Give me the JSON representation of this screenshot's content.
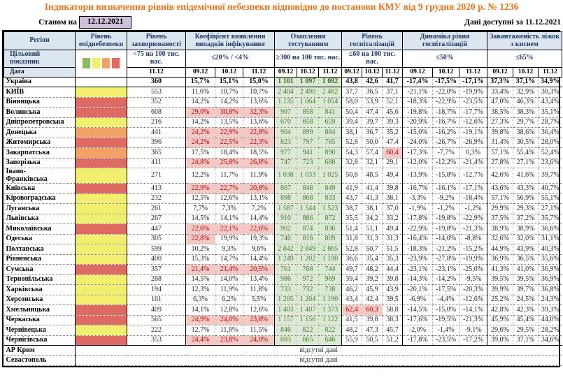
{
  "title": "Індикатори визначення рівнів епідемічної небезпеки відповідно до постанови КМУ від 9 грудня 2020 р. № 1236",
  "meta": {
    "as_of_label": "Станом на",
    "as_of_date": "12.12.2021",
    "available_label": "Дані доступні за 11.12.2021"
  },
  "colors": {
    "title_text": "#E8751A",
    "header_bg": "#DCE6F1",
    "date_box_bg": "#CCC0DA",
    "level_yellow": "#F2EE6E",
    "level_orange": "#F2A269",
    "level_red": "#DF6A64",
    "legend_green": "#8CBB5A",
    "testing_bg": "#DCEAD3",
    "testing_text": "#4A7A38",
    "danger_bg": "#F5C9C6",
    "danger_text": "#C00000"
  },
  "table": {
    "header": {
      "region_label": "Регіон",
      "level_label": "Рівень епіднебезпеки",
      "target_label": "Цільовий\nпоказник",
      "date_label": "Дата",
      "groups": [
        {
          "label": "Рівень захворюваності",
          "target": "<75 на 100 тис. нас.",
          "dates": [
            "11.12"
          ]
        },
        {
          "label": "Коефіцієнт виявлення випадків інфікування",
          "target": "≤20% / <4%",
          "dates": [
            "09.12",
            "10.12",
            "11.12"
          ]
        },
        {
          "label": "Охоплення тестуванням",
          "target": "≥300 на 100 тис. нас.",
          "dates": [
            "09.12",
            "10.12",
            "11.12"
          ]
        },
        {
          "label": "Рівень госпіталізацій",
          "target": "≤60 на 100 тис. нас.",
          "dates": [
            "09.12",
            "10.12",
            "11.12"
          ]
        },
        {
          "label": "Динаміка рівня госпіталізацій",
          "target": "≤50%",
          "dates": [
            "09.12",
            "10.12",
            "11.12"
          ]
        },
        {
          "label": "Завантаженість ліжок з киснем",
          "target": "≤65%",
          "dates": [
            "09.12",
            "10.12",
            "11.12"
          ]
        }
      ]
    },
    "legend_colors": [
      "#8CBB5A",
      "#F2EE6E",
      "#F2A269",
      "#DF6A64"
    ],
    "thresholds": {
      "coef_max": 20,
      "hosp_max": 60
    },
    "no_data_text": "відсутні дані",
    "rows": [
      {
        "region": "Україна",
        "level": "none",
        "bold": true,
        "incidence": "360",
        "coef": [
          "15,7%",
          "15,1%",
          "15,0%"
        ],
        "testing": [
          "1 101",
          "1 097",
          "1 082"
        ],
        "hosp": [
          "43,8",
          "42,6",
          "41,7"
        ],
        "dyn": [
          "-17,4%",
          "-17,5%",
          "-17,1%"
        ],
        "beds": [
          "37,3%",
          "37,1%",
          "34,9%"
        ]
      },
      {
        "region": "КИЇВ",
        "level": "yellow",
        "incidence": "553",
        "coef": [
          "11,6%",
          "10,7%",
          "10,7%"
        ],
        "testing": [
          "2 404",
          "2 490",
          "2 462"
        ],
        "hosp": [
          "37,7",
          "36,5",
          "37,1"
        ],
        "dyn": [
          "-21,1%",
          "-22,0%",
          "-19,9%"
        ],
        "beds": [
          "33,4%",
          "32,9%",
          "30,3%"
        ]
      },
      {
        "region": "Вінницька",
        "level": "red",
        "incidence": "352",
        "coef": [
          "14,2%",
          "14,2%",
          "13,6%"
        ],
        "testing": [
          "1 135",
          "1 064",
          "1 054"
        ],
        "hosp": [
          "58,0",
          "53,9",
          "52,1"
        ],
        "dyn": [
          "-18,3%",
          "-22,9%",
          "-23,5%"
        ],
        "beds": [
          "47,0%",
          "46,3%",
          "43,4%"
        ]
      },
      {
        "region": "Волинська",
        "level": "red",
        "incidence": "608",
        "coef": [
          "29,0%",
          "30,8%",
          "32,3%"
        ],
        "testing": [
          "907",
          "858",
          "841"
        ],
        "hosp": [
          "50,4",
          "47,4",
          "45,6"
        ],
        "dyn": [
          "-19,8%",
          "-18,7%",
          "-17,7%"
        ],
        "beds": [
          "38,5%",
          "38,3%",
          "35,1%"
        ]
      },
      {
        "region": "Дніпропетровська",
        "level": "yellow",
        "incidence": "216",
        "coef": [
          "14,2%",
          "13,5%",
          "13,6%"
        ],
        "testing": [
          "670",
          "658",
          "659"
        ],
        "hosp": [
          "39,4",
          "39,7",
          "39,3"
        ],
        "dyn": [
          "-20,9%",
          "-16,7%",
          "-12,6%"
        ],
        "beds": [
          "27,3%",
          "29,7%",
          "28,7%"
        ]
      },
      {
        "region": "Донецька",
        "level": "orange",
        "incidence": "441",
        "coef": [
          "24,2%",
          "22,9%",
          "22,8%"
        ],
        "testing": [
          "904",
          "899",
          "884"
        ],
        "hosp": [
          "38,1",
          "36,7",
          "35,2"
        ],
        "dyn": [
          "-15,0%",
          "-16,2%",
          "-19,1%"
        ],
        "beds": [
          "39,8%",
          "38,6%",
          "36,4%"
        ]
      },
      {
        "region": "Житомирська",
        "level": "red",
        "incidence": "396",
        "coef": [
          "24,2%",
          "22,5%",
          "22,3%"
        ],
        "testing": [
          "823",
          "797",
          "765"
        ],
        "hosp": [
          "52,8",
          "50,0",
          "47,4"
        ],
        "dyn": [
          "-24,0%",
          "-26,7%",
          "-26,9%"
        ],
        "beds": [
          "31,4%",
          "30,5%",
          "28,0%"
        ]
      },
      {
        "region": "Закарпатська",
        "level": "orange",
        "incidence": "365",
        "coef": [
          "17,5%",
          "18,4%",
          "18,5%"
        ],
        "testing": [
          "977",
          "941",
          "890"
        ],
        "hosp": [
          "54,3",
          "57,4",
          "60,4"
        ],
        "dyn": [
          "-17,3%",
          "-7,7%",
          "0,3%"
        ],
        "beds": [
          "57,1%",
          "55,4%",
          "52,4%"
        ]
      },
      {
        "region": "Запорізька",
        "level": "red",
        "incidence": "411",
        "coef": [
          "24,8%",
          "25,8%",
          "26,8%"
        ],
        "testing": [
          "747",
          "723",
          "688"
        ],
        "hosp": [
          "32,8",
          "32,1",
          "29,1"
        ],
        "dyn": [
          "-12,0%",
          "-12,2%",
          "-21,4%"
        ],
        "beds": [
          "27,8%",
          "27,1%",
          "23,6%"
        ]
      },
      {
        "region": "Івано-\nФранківська",
        "level": "yellow",
        "incidence": "271",
        "coef": [
          "12,2%",
          "11,7%",
          "11,9%"
        ],
        "testing": [
          "1 038",
          "1 033",
          "1 025"
        ],
        "hosp": [
          "50,8",
          "48,5",
          "49,4"
        ],
        "dyn": [
          "-13,9%",
          "-15,8%",
          "-12,7%"
        ],
        "beds": [
          "42,6%",
          "41,6%",
          "39,7%"
        ]
      },
      {
        "region": "Київська",
        "level": "red",
        "incidence": "413",
        "coef": [
          "22,9%",
          "22,7%",
          "20,8%"
        ],
        "testing": [
          "867",
          "848",
          "849"
        ],
        "hosp": [
          "41,9",
          "41,4",
          "39,8"
        ],
        "dyn": [
          "-16,7%",
          "-16,1%",
          "-17,1%"
        ],
        "beds": [
          "43,6%",
          "43,3%",
          "40,7%"
        ]
      },
      {
        "region": "Кіровоградська",
        "level": "yellow",
        "incidence": "232",
        "coef": [
          "12,5%",
          "12,6%",
          "13,1%"
        ],
        "testing": [
          "898",
          "868",
          "833"
        ],
        "hosp": [
          "43,7",
          "41,3",
          "38,1"
        ],
        "dyn": [
          "-3,3%",
          "-9,2%",
          "-18,4%"
        ],
        "beds": [
          "57,1%",
          "56,9%",
          "55,1%"
        ]
      },
      {
        "region": "Луганська",
        "level": "yellow",
        "incidence": "261",
        "coef": [
          "7,7%",
          "7,3%",
          "7,2%"
        ],
        "testing": [
          "1 587",
          "1 544",
          "1 523"
        ],
        "hosp": [
          "38,7",
          "38,1",
          "37,0"
        ],
        "dyn": [
          "-1,9%",
          "-1,2%",
          "-1,2%"
        ],
        "beds": [
          "29,9%",
          "29,3%",
          "27,1%"
        ]
      },
      {
        "region": "Львівська",
        "level": "yellow",
        "incidence": "267",
        "coef": [
          "14,5%",
          "14,1%",
          "14,4%"
        ],
        "testing": [
          "910",
          "886",
          "872"
        ],
        "hosp": [
          "35,5",
          "34,2",
          "33,2"
        ],
        "dyn": [
          "-17,8%",
          "-19,8%",
          "-22,9%"
        ],
        "beds": [
          "37,5%",
          "37,2%",
          "35,7%"
        ]
      },
      {
        "region": "Миколаївська",
        "level": "red",
        "incidence": "447",
        "coef": [
          "22,6%",
          "22,1%",
          "22,6%"
        ],
        "testing": [
          "902",
          "874",
          "836"
        ],
        "hosp": [
          "51,4",
          "51,1",
          "49,4"
        ],
        "dyn": [
          "-22,9%",
          "-19,8%",
          "-21,3%"
        ],
        "beds": [
          "38,9%",
          "38,9%",
          "36,6%"
        ]
      },
      {
        "region": "Одеська",
        "level": "yellow",
        "incidence": "305",
        "coef": [
          "22,8%",
          "19,9%",
          "19,3%"
        ],
        "testing": [
          "740",
          "816",
          "809"
        ],
        "hosp": [
          "31,8",
          "31,3",
          "31,3"
        ],
        "dyn": [
          "-16,4%",
          "-14,0%",
          "-8,8%"
        ],
        "beds": [
          "32,6%",
          "32,0%",
          "31,1%"
        ]
      },
      {
        "region": "Полтавська",
        "level": "yellow",
        "incidence": "599",
        "coef": [
          "10,2%",
          "9,3%",
          "9,6%"
        ],
        "testing": [
          "2 842",
          "2 849",
          "2 865"
        ],
        "hosp": [
          "52,8",
          "50,7",
          "51,5"
        ],
        "dyn": [
          "-18,3%",
          "-21,2%",
          "-15,2%"
        ],
        "beds": [
          "44,9%",
          "43,9%",
          "40,3%"
        ]
      },
      {
        "region": "Рівненська",
        "level": "yellow",
        "incidence": "400",
        "coef": [
          "15,3%",
          "14,7%",
          "14,4%"
        ],
        "testing": [
          "1 249",
          "1 202",
          "1 190"
        ],
        "hosp": [
          "36,6",
          "35,4",
          "35,3"
        ],
        "dyn": [
          "-23,9%",
          "-27,8%",
          "-19,9%"
        ],
        "beds": [
          "36,9%",
          "36,5%",
          "35,6%"
        ]
      },
      {
        "region": "Сумська",
        "level": "red",
        "incidence": "357",
        "coef": [
          "21,4%",
          "21,4%",
          "20,5%"
        ],
        "testing": [
          "761",
          "768",
          "744"
        ],
        "hosp": [
          "49,7",
          "48,2",
          "44,4"
        ],
        "dyn": [
          "-23,1%",
          "-23,1%",
          "-25,0%"
        ],
        "beds": [
          "41,3%",
          "41,0%",
          "36,9%"
        ]
      },
      {
        "region": "Тернопільська",
        "level": "yellow",
        "incidence": "288",
        "coef": [
          "14,5%",
          "14,0%",
          "13,4%"
        ],
        "testing": [
          "986",
          "972",
          "969"
        ],
        "hosp": [
          "39,4",
          "39,2",
          "39,8"
        ],
        "dyn": [
          "-14,3%",
          "-14,2%",
          "-9,5%"
        ],
        "beds": [
          "39,5%",
          "39,5%",
          "36,9%"
        ]
      },
      {
        "region": "Харківська",
        "level": "yellow",
        "incidence": "194",
        "coef": [
          "12,3%",
          "11,9%",
          "11,8%"
        ],
        "testing": [
          "733",
          "732",
          "738"
        ],
        "hosp": [
          "46,2",
          "45,9",
          "43,9"
        ],
        "dyn": [
          "-20,1%",
          "-17,5%",
          "-20,3%"
        ],
        "beds": [
          "39,9%",
          "39,7%",
          "36,8%"
        ]
      },
      {
        "region": "Херсонська",
        "level": "yellow",
        "incidence": "161",
        "coef": [
          "6,3%",
          "6,2%",
          "5,5%"
        ],
        "testing": [
          "1 205",
          "1 204",
          "1 190"
        ],
        "hosp": [
          "43,4",
          "42,4",
          "39,5"
        ],
        "dyn": [
          "-6,9%",
          "-4,4%",
          "-12,6%"
        ],
        "beds": [
          "25,2%",
          "24,5%",
          "24,3%"
        ]
      },
      {
        "region": "Хмельницька",
        "level": "red",
        "incidence": "409",
        "coef": [
          "14,1%",
          "12,8%",
          "12,6%"
        ],
        "testing": [
          "1 403",
          "1 407",
          "1 373"
        ],
        "hosp": [
          "62,4",
          "60,3",
          "58,8"
        ],
        "dyn": [
          "-14,5%",
          "-15,0%",
          "-14,1%"
        ],
        "beds": [
          "42,8%",
          "42,3%",
          "39,3%"
        ]
      },
      {
        "region": "Черкаська",
        "level": "red",
        "incidence": "565",
        "coef": [
          "24,9%",
          "24,0%",
          "23,8%"
        ],
        "testing": [
          "1 157",
          "1 156",
          "1 122"
        ],
        "hosp": [
          "41,5",
          "39,8",
          "38,3"
        ],
        "dyn": [
          "-17,6%",
          "-19,5%",
          "-21,3%"
        ],
        "beds": [
          "45,9%",
          "45,4%",
          "44,0%"
        ]
      },
      {
        "region": "Чернівецька",
        "level": "yellow",
        "incidence": "222",
        "coef": [
          "12,7%",
          "11,8%",
          "11,5%"
        ],
        "testing": [
          "846",
          "822",
          "822"
        ],
        "hosp": [
          "48,2",
          "47,3",
          "45,7"
        ],
        "dyn": [
          "-2,0%",
          "-1,4%",
          "-9,1%"
        ],
        "beds": [
          "29,6%",
          "29,5%",
          "28,2%"
        ]
      },
      {
        "region": "Чернігівська",
        "level": "red",
        "incidence": "353",
        "coef": [
          "24,4%",
          "23,8%",
          "24,0%"
        ],
        "testing": [
          "693",
          "665",
          "646"
        ],
        "hosp": [
          "55,9",
          "50,5",
          "51,2"
        ],
        "dyn": [
          "-17,8%",
          "-23,5%",
          "-17,2%"
        ],
        "beds": [
          "39,0%",
          "37,1%",
          "34,6%"
        ]
      },
      {
        "region": "АР Крим",
        "no_data": true
      },
      {
        "region": "Севастополь",
        "no_data": true
      }
    ]
  }
}
